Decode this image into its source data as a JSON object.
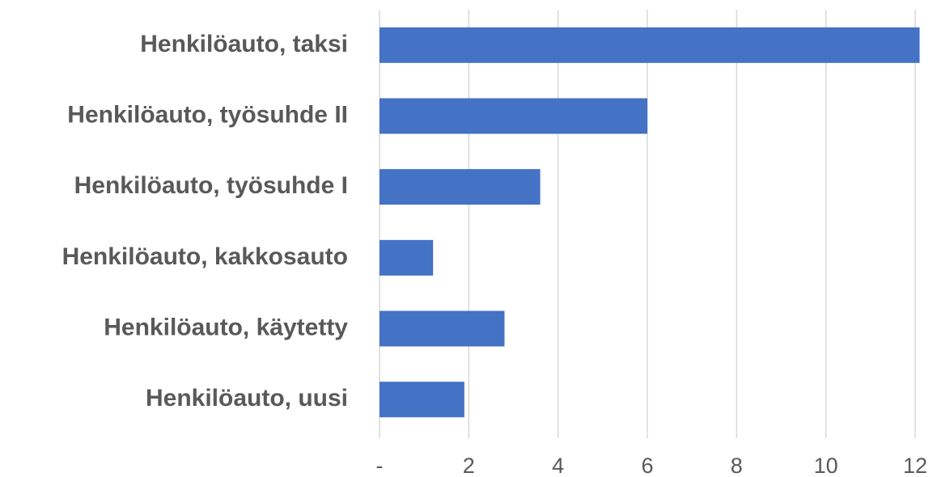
{
  "chart_data": {
    "type": "bar",
    "orientation": "horizontal",
    "categories": [
      "Henkilöauto, taksi",
      "Henkilöauto, työsuhde II",
      "Henkilöauto, työsuhde I",
      "Henkilöauto, kakkosauto",
      "Henkilöauto, käytetty",
      "Henkilöauto, uusi"
    ],
    "values": [
      12.1,
      6.0,
      3.6,
      1.2,
      2.8,
      1.9
    ],
    "color": "#4472c4",
    "xlim": [
      0,
      12.2
    ],
    "xticks": [
      {
        "value": 0,
        "label": "-"
      },
      2,
      4,
      6,
      8,
      10,
      12
    ],
    "grid": true
  }
}
